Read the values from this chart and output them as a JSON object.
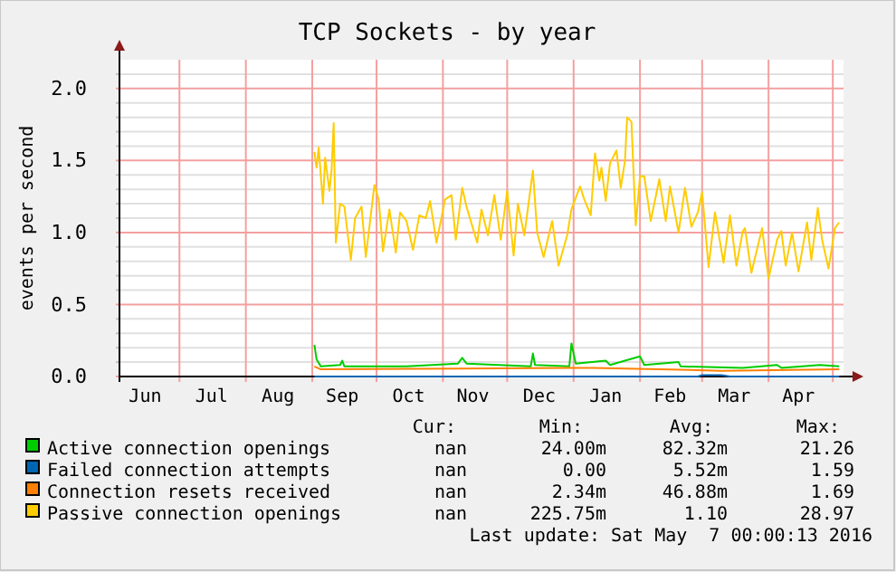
{
  "chart_data": {
    "type": "line",
    "title": "TCP Sockets - by year",
    "ylabel": "events per second",
    "xlim": [
      "2015-06-03",
      "2016-05-06"
    ],
    "xticks": [
      {
        "value": "2015-06-15",
        "label": "Jun"
      },
      {
        "value": "2015-07-01",
        "label": null
      },
      {
        "value": "2015-07-16",
        "label": "Jul"
      },
      {
        "value": "2015-08-01",
        "label": null
      },
      {
        "value": "2015-08-16",
        "label": "Aug"
      },
      {
        "value": "2015-09-01",
        "label": null
      },
      {
        "value": "2015-09-15",
        "label": "Sep"
      },
      {
        "value": "2015-10-01",
        "label": null
      },
      {
        "value": "2015-10-16",
        "label": "Oct"
      },
      {
        "value": "2015-11-01",
        "label": null
      },
      {
        "value": "2015-11-15",
        "label": "Nov"
      },
      {
        "value": "2015-12-01",
        "label": null
      },
      {
        "value": "2015-12-16",
        "label": "Dec"
      },
      {
        "value": "2016-01-01",
        "label": null
      },
      {
        "value": "2016-01-16",
        "label": "Jan"
      },
      {
        "value": "2016-02-01",
        "label": null
      },
      {
        "value": "2016-02-15",
        "label": "Feb"
      },
      {
        "value": "2016-03-01",
        "label": null
      },
      {
        "value": "2016-03-16",
        "label": "Mar"
      },
      {
        "value": "2016-04-01",
        "label": null
      },
      {
        "value": "2016-04-15",
        "label": "Apr"
      },
      {
        "value": "2016-05-01",
        "label": null
      }
    ],
    "ylim": [
      0,
      2.2
    ],
    "yticks": [
      {
        "value": 0,
        "label": "0.0"
      },
      {
        "value": 0.1,
        "label": null
      },
      {
        "value": 0.2,
        "label": null
      },
      {
        "value": 0.3,
        "label": null
      },
      {
        "value": 0.4,
        "label": null
      },
      {
        "value": 0.5,
        "label": "0.5"
      },
      {
        "value": 0.6,
        "label": null
      },
      {
        "value": 0.7,
        "label": null
      },
      {
        "value": 0.8,
        "label": null
      },
      {
        "value": 0.9,
        "label": null
      },
      {
        "value": 1,
        "label": "1.0"
      },
      {
        "value": 1.1,
        "label": null
      },
      {
        "value": 1.2,
        "label": null
      },
      {
        "value": 1.3,
        "label": null
      },
      {
        "value": 1.4,
        "label": null
      },
      {
        "value": 1.5,
        "label": "1.5"
      },
      {
        "value": 1.6,
        "label": null
      },
      {
        "value": 1.7,
        "label": null
      },
      {
        "value": 1.8,
        "label": null
      },
      {
        "value": 1.9,
        "label": null
      },
      {
        "value": 2,
        "label": "2.0"
      },
      {
        "value": 2.1,
        "label": null
      }
    ],
    "grid": true,
    "legend": "bottom",
    "marker": "none",
    "line_style": "solid",
    "series": [
      {
        "name": "Active connection openings",
        "color": "#00cc00",
        "x": [
          "2015-09-02",
          "2015-09-03",
          "2015-09-05",
          "2015-09-14",
          "2015-09-15",
          "2015-09-16",
          "2015-10-15",
          "2015-11-08",
          "2015-11-10",
          "2015-11-12",
          "2015-12-12",
          "2015-12-13",
          "2015-12-14",
          "2015-12-30",
          "2015-12-31",
          "2016-01-02",
          "2016-01-16",
          "2016-01-18",
          "2016-02-01",
          "2016-02-03",
          "2016-02-19",
          "2016-02-20",
          "2016-03-20",
          "2016-04-05",
          "2016-04-07",
          "2016-04-25",
          "2016-05-04"
        ],
        "values": [
          0.22,
          0.12,
          0.07,
          0.08,
          0.11,
          0.07,
          0.07,
          0.09,
          0.13,
          0.09,
          0.07,
          0.16,
          0.08,
          0.07,
          0.23,
          0.09,
          0.11,
          0.08,
          0.14,
          0.08,
          0.1,
          0.07,
          0.06,
          0.08,
          0.06,
          0.08,
          0.07
        ]
      },
      {
        "name": "Failed connection attempts",
        "color": "#0066b3",
        "x": [
          "2015-09-02",
          "2016-02-28",
          "2016-03-01",
          "2016-03-10",
          "2016-03-14",
          "2016-05-04"
        ],
        "values": [
          0,
          0,
          0.01,
          0.01,
          0,
          0
        ]
      },
      {
        "name": "Connection resets received",
        "color": "#ff8000",
        "x": [
          "2015-09-02",
          "2015-09-05",
          "2015-12-31",
          "2016-01-10",
          "2016-02-10",
          "2016-03-10",
          "2016-05-04"
        ],
        "values": [
          0.07,
          0.05,
          0.06,
          0.06,
          0.05,
          0.04,
          0.05
        ]
      },
      {
        "name": "Passive connection openings",
        "color": "#ffcc00",
        "x": [
          "2015-09-02",
          "2015-09-03",
          "2015-09-04",
          "2015-09-06",
          "2015-09-07",
          "2015-09-09",
          "2015-09-10",
          "2015-09-11",
          "2015-09-12",
          "2015-09-14",
          "2015-09-16",
          "2015-09-19",
          "2015-09-21",
          "2015-09-24",
          "2015-09-26",
          "2015-09-30",
          "2015-10-02",
          "2015-10-04",
          "2015-10-07",
          "2015-10-10",
          "2015-10-12",
          "2015-10-15",
          "2015-10-18",
          "2015-10-21",
          "2015-10-24",
          "2015-10-26",
          "2015-10-29",
          "2015-11-02",
          "2015-11-05",
          "2015-11-07",
          "2015-11-10",
          "2015-11-12",
          "2015-11-17",
          "2015-11-19",
          "2015-11-22",
          "2015-11-25",
          "2015-11-28",
          "2015-12-01",
          "2015-12-04",
          "2015-12-06",
          "2015-12-09",
          "2015-12-13",
          "2015-12-15",
          "2015-12-18",
          "2015-12-22",
          "2015-12-25",
          "2015-12-29",
          "2015-12-31",
          "2016-01-04",
          "2016-01-06",
          "2016-01-09",
          "2016-01-11",
          "2016-01-13",
          "2016-01-14",
          "2016-01-16",
          "2016-01-18",
          "2016-01-21",
          "2016-01-23",
          "2016-01-25",
          "2016-01-26",
          "2016-01-28",
          "2016-01-30",
          "2016-02-01",
          "2016-02-03",
          "2016-02-06",
          "2016-02-10",
          "2016-02-13",
          "2016-02-15",
          "2016-02-19",
          "2016-02-22",
          "2016-02-25",
          "2016-02-28",
          "2016-03-01",
          "2016-03-04",
          "2016-03-07",
          "2016-03-11",
          "2016-03-14",
          "2016-03-17",
          "2016-03-20",
          "2016-03-21",
          "2016-03-24",
          "2016-03-29",
          "2016-04-01",
          "2016-04-05",
          "2016-04-07",
          "2016-04-09",
          "2016-04-12",
          "2016-04-15",
          "2016-04-19",
          "2016-04-21",
          "2016-04-24",
          "2016-04-26",
          "2016-04-29",
          "2016-05-02",
          "2016-05-04"
        ],
        "values": [
          1.56,
          1.45,
          1.59,
          1.2,
          1.52,
          1.29,
          1.43,
          1.76,
          0.93,
          1.2,
          1.18,
          0.81,
          1.1,
          1.18,
          0.83,
          1.33,
          1.23,
          0.87,
          1.16,
          0.86,
          1.14,
          1.08,
          0.88,
          1.12,
          1.1,
          1.22,
          0.93,
          1.23,
          1.26,
          0.95,
          1.31,
          1.18,
          0.93,
          1.16,
          0.98,
          1.26,
          0.95,
          1.29,
          0.84,
          1.2,
          0.98,
          1.43,
          1.0,
          0.83,
          1.08,
          0.77,
          0.98,
          1.16,
          1.32,
          1.23,
          1.12,
          1.55,
          1.36,
          1.45,
          1.22,
          1.48,
          1.57,
          1.31,
          1.5,
          1.8,
          1.77,
          1.05,
          1.39,
          1.39,
          1.08,
          1.37,
          1.08,
          1.32,
          1.0,
          1.31,
          1.04,
          1.14,
          1.28,
          0.76,
          1.14,
          0.79,
          1.12,
          0.77,
          1.01,
          1.03,
          0.72,
          1.03,
          0.68,
          0.95,
          1.01,
          0.77,
          1.0,
          0.73,
          1.07,
          0.81,
          1.17,
          0.95,
          0.75,
          1.03,
          1.07
        ]
      }
    ],
    "annotations": [
      "Cur:",
      "Min:",
      "Avg:",
      "Max:",
      "nan",
      "24.00m",
      "82.32m",
      "21.26",
      "nan",
      "0.00",
      "5.52m",
      "1.59",
      "nan",
      "2.34m",
      "46.88m",
      "1.69",
      "nan",
      "225.75m",
      "1.10",
      "28.97",
      "Last update: Sat May  7 00:00:13 2016"
    ]
  }
}
